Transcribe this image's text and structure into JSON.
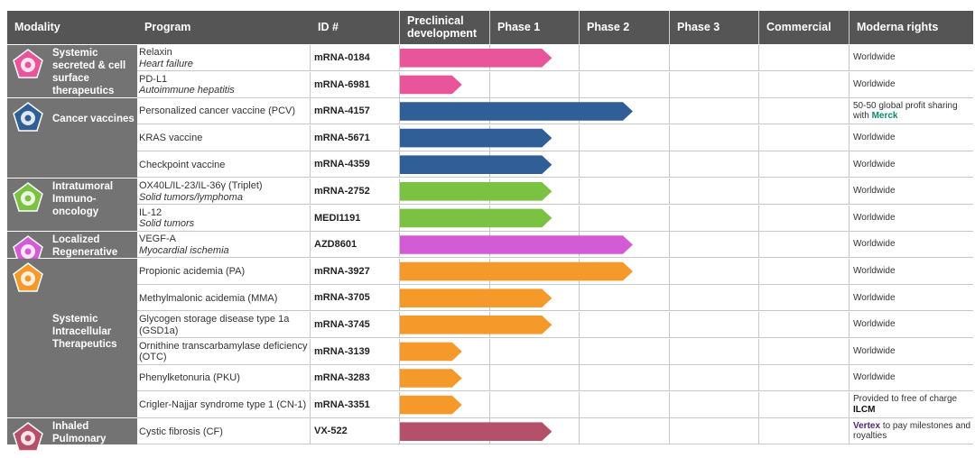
{
  "headers": {
    "modality": "Modality",
    "program": "Program",
    "id": "ID #",
    "phases": [
      "Preclinical development",
      "Phase 1",
      "Phase 2",
      "Phase 3",
      "Commercial"
    ],
    "rights": "Moderna rights"
  },
  "groups": [
    {
      "name": "Systemic secreted & cell surface therapeutics",
      "icon": "person-icon",
      "color": "#e8559a",
      "rows": 2
    },
    {
      "name": "Cancer vaccines",
      "icon": "cell-icon",
      "color": "#2f5f96",
      "rows": 3
    },
    {
      "name": "Intratumoral Immuno-oncology",
      "icon": "tumor-icon",
      "color": "#7cc242",
      "rows": 2
    },
    {
      "name": "Localized Regenerative Therapeutics",
      "icon": "heart-icon",
      "color": "#d45bd6",
      "rows": 1
    },
    {
      "name": "Systemic Intracellular Therapeutics",
      "icon": "liver-icon",
      "color": "#f59a2a",
      "rows": 6
    },
    {
      "name": "Inhaled Pulmonary Therapeutics",
      "icon": "lungs-icon",
      "color": "#b5506a",
      "rows": 1
    }
  ],
  "rows": [
    {
      "program": "Relaxin",
      "indication": "Heart failure",
      "id": "mRNA-0184",
      "rights": "Worldwide",
      "partner": ""
    },
    {
      "program": "PD-L1",
      "indication": "Autoimmune hepatitis",
      "id": "mRNA-6981",
      "rights": "Worldwide",
      "partner": ""
    },
    {
      "program": "Personalized cancer vaccine (PCV)",
      "indication": "",
      "id": "mRNA-4157",
      "rights": "50-50 global profit sharing with",
      "partner": "Merck"
    },
    {
      "program": "KRAS vaccine",
      "indication": "",
      "id": "mRNA-5671",
      "rights": "Worldwide",
      "partner": ""
    },
    {
      "program": "Checkpoint vaccine",
      "indication": "",
      "id": "mRNA-4359",
      "rights": "Worldwide",
      "partner": ""
    },
    {
      "program": "OX40L/IL-23/IL-36γ (Triplet)",
      "indication": "Solid tumors/lymphoma",
      "id": "mRNA-2752",
      "rights": "Worldwide",
      "partner": ""
    },
    {
      "program": "IL-12",
      "indication": "Solid tumors",
      "id": "MEDI1191",
      "rights": "Worldwide",
      "partner": ""
    },
    {
      "program": "VEGF-A",
      "indication": "Myocardial ischemia",
      "id": "AZD8601",
      "rights": "Worldwide",
      "partner": ""
    },
    {
      "program": "Propionic acidemia (PA)",
      "indication": "",
      "id": "mRNA-3927",
      "rights": "Worldwide",
      "partner": ""
    },
    {
      "program": "Methylmalonic acidemia (MMA)",
      "indication": "",
      "id": "mRNA-3705",
      "rights": "Worldwide",
      "partner": ""
    },
    {
      "program": "Glycogen storage disease type 1a (GSD1a)",
      "indication": "",
      "id": "mRNA-3745",
      "rights": "Worldwide",
      "partner": ""
    },
    {
      "program": "Ornithine transcarbamylase deficiency (OTC)",
      "indication": "",
      "id": "mRNA-3139",
      "rights": "Worldwide",
      "partner": ""
    },
    {
      "program": "Phenylketonuria (PKU)",
      "indication": "",
      "id": "mRNA-3283",
      "rights": "Worldwide",
      "partner": ""
    },
    {
      "program": "Crigler-Najjar syndrome type 1 (CN-1)",
      "indication": "",
      "id": "mRNA-3351",
      "rights": "Provided to  free of charge",
      "partner": "ILCM"
    },
    {
      "program": "Cystic fibrosis (CF)",
      "indication": "",
      "id": "VX-522",
      "rights": "to pay milestones and royalties",
      "partner": "Vertex"
    }
  ],
  "partner_colors": {
    "Merck": "#0e8a6e",
    "ILCM": "#111111",
    "Vertex": "#4b2a84"
  },
  "chart_data": {
    "type": "bar",
    "orientation": "horizontal",
    "categories": [
      "mRNA-0184",
      "mRNA-6981",
      "mRNA-4157",
      "mRNA-5671",
      "mRNA-4359",
      "mRNA-2752",
      "MEDI1191",
      "AZD8601",
      "mRNA-3927",
      "mRNA-3705",
      "mRNA-3745",
      "mRNA-3139",
      "mRNA-3283",
      "mRNA-3351",
      "VX-522"
    ],
    "stages": [
      "Preclinical development",
      "Phase 1",
      "Phase 2",
      "Phase 3",
      "Commercial"
    ],
    "values": [
      1.7,
      0.7,
      2.6,
      1.7,
      1.7,
      1.7,
      1.7,
      2.6,
      2.6,
      1.7,
      1.7,
      0.7,
      0.7,
      0.7,
      1.7
    ],
    "colors": [
      "#e8559a",
      "#e8559a",
      "#2f5f96",
      "#2f5f96",
      "#2f5f96",
      "#7cc242",
      "#7cc242",
      "#d45bd6",
      "#f59a2a",
      "#f59a2a",
      "#f59a2a",
      "#f59a2a",
      "#f59a2a",
      "#f59a2a",
      "#b5506a"
    ],
    "xlim": [
      0,
      5
    ]
  }
}
